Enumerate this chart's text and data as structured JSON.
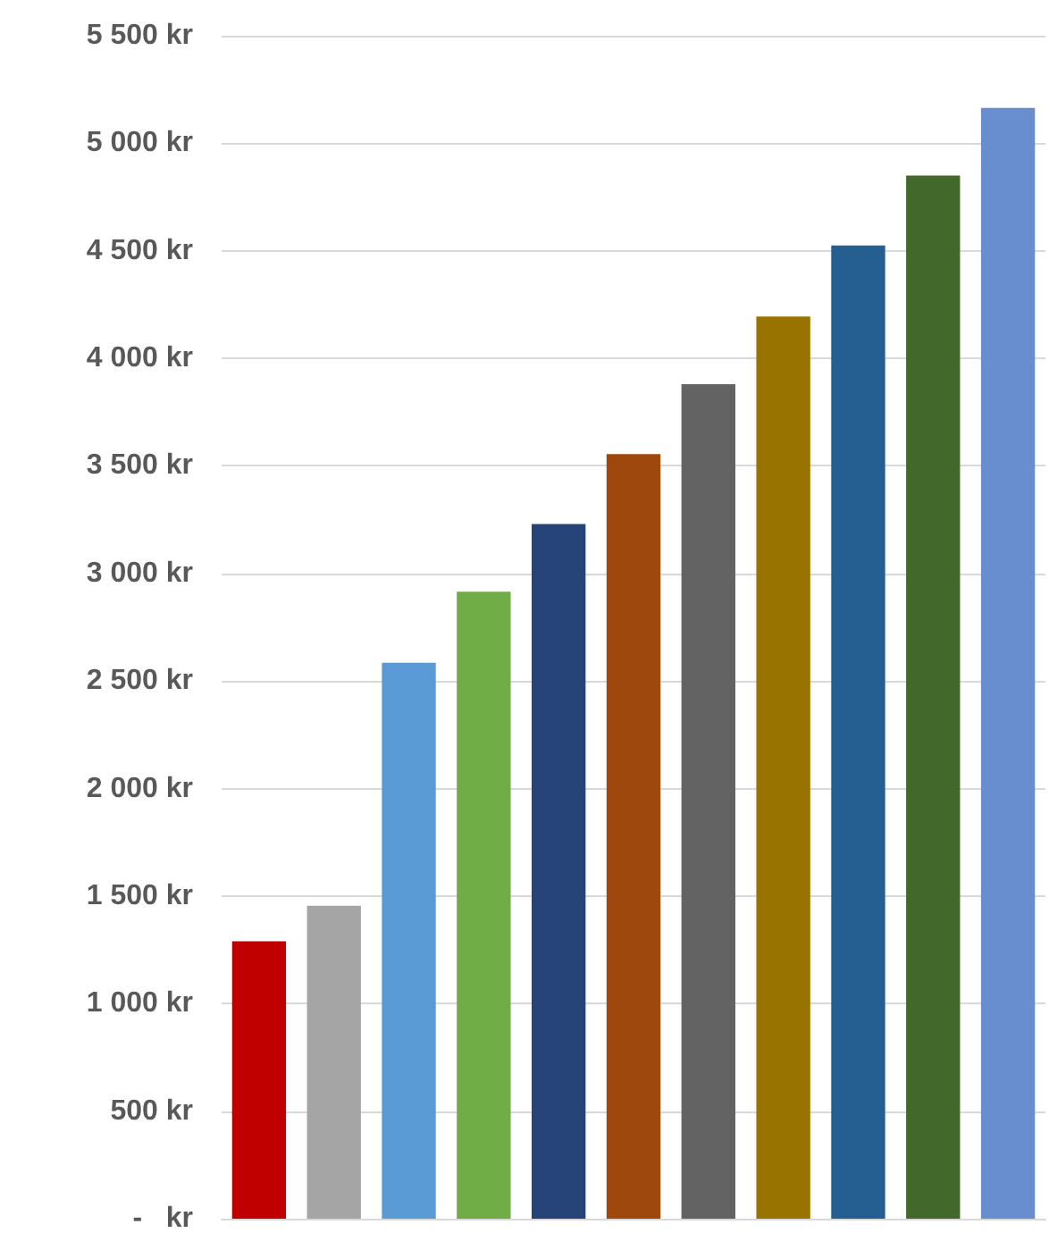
{
  "chart_data": {
    "type": "bar",
    "categories": [
      null,
      null,
      null,
      null,
      null,
      null,
      null,
      null,
      null,
      null,
      null
    ],
    "values": [
      1290,
      1455,
      2585,
      2915,
      3230,
      3555,
      3880,
      4195,
      4525,
      4850,
      5165
    ],
    "colors": [
      "#c00000",
      "#a5a5a5",
      "#5b9bd5",
      "#70ad47",
      "#264478",
      "#9e480e",
      "#636363",
      "#997300",
      "#255e91",
      "#43682b",
      "#698ed0"
    ],
    "ylim": [
      0,
      5500
    ],
    "yticks": [
      {
        "value": 0,
        "label": "-   kr"
      },
      {
        "value": 500,
        "label": "500 kr"
      },
      {
        "value": 1000,
        "label": "1 000 kr"
      },
      {
        "value": 1500,
        "label": "1 500 kr"
      },
      {
        "value": 2000,
        "label": "2 000 kr"
      },
      {
        "value": 2500,
        "label": "2 500 kr"
      },
      {
        "value": 3000,
        "label": "3 000 kr"
      },
      {
        "value": 3500,
        "label": "3 500 kr"
      },
      {
        "value": 4000,
        "label": "4 000 kr"
      },
      {
        "value": 4500,
        "label": "4 500 kr"
      },
      {
        "value": 5000,
        "label": "5 000 kr"
      },
      {
        "value": 5500,
        "label": "5 500 kr"
      }
    ],
    "grid": "y"
  }
}
